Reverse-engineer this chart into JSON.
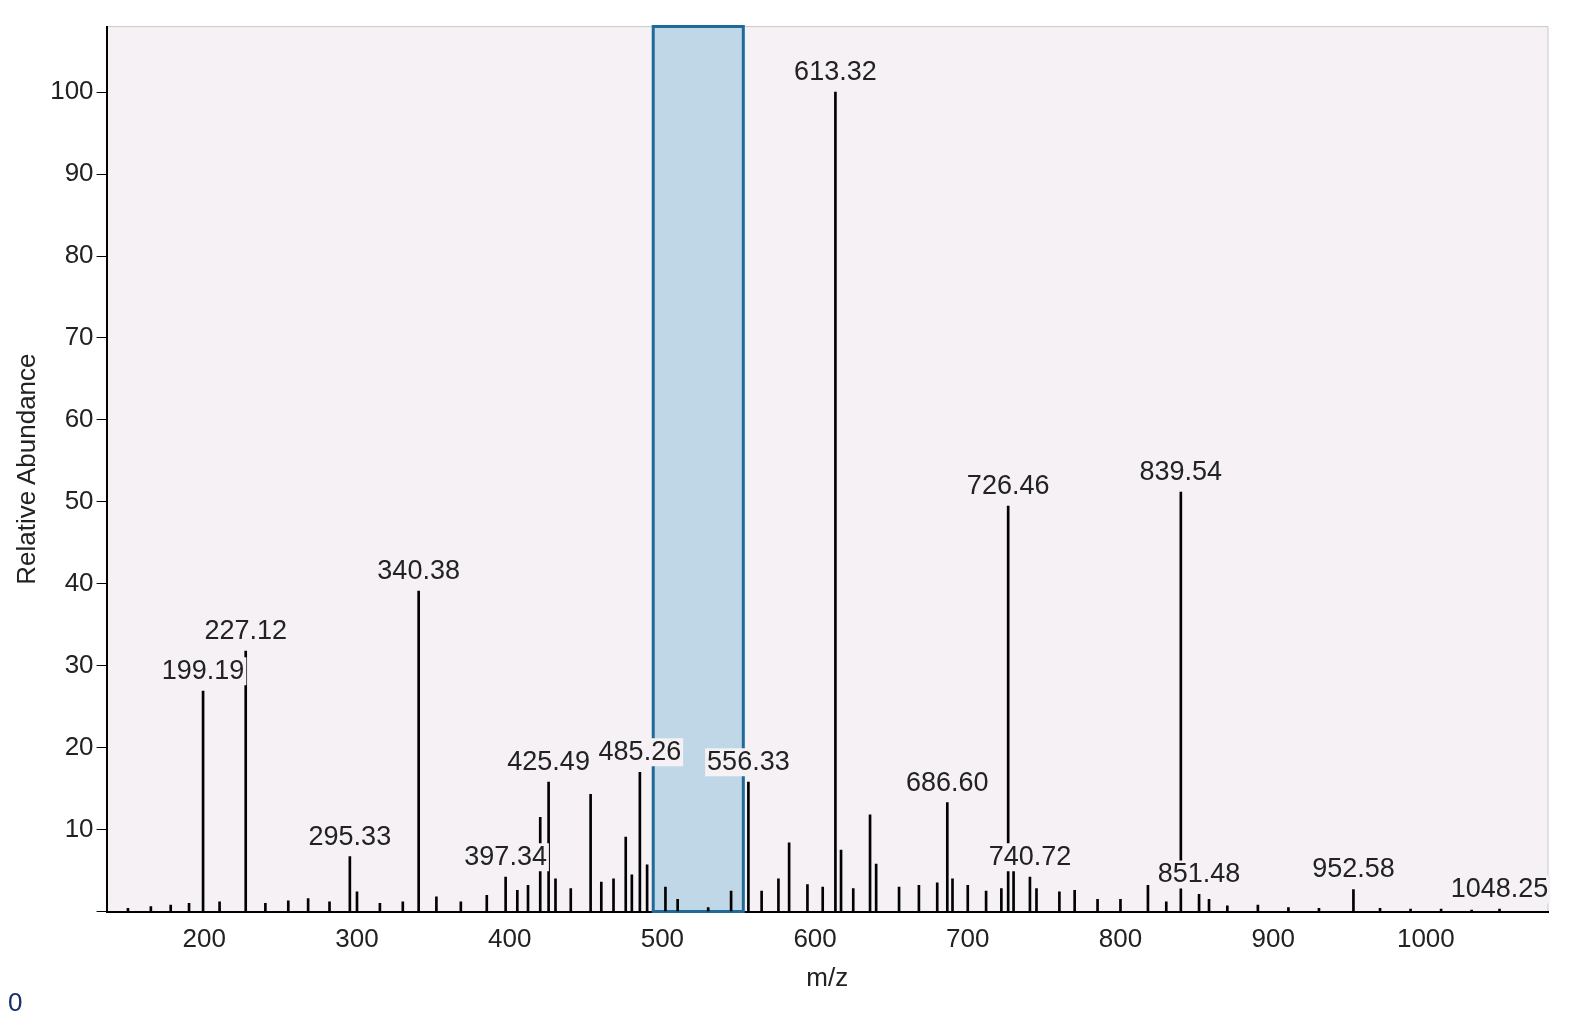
{
  "chart_data": {
    "type": "bar",
    "xlabel": "m/z",
    "ylabel": "Relative Abundance",
    "x": [
      150,
      165,
      178,
      190,
      199.19,
      210,
      227.12,
      240,
      255,
      268,
      282,
      295.33,
      300,
      315,
      330,
      340.38,
      352,
      368,
      385,
      397.34,
      405,
      412,
      420,
      425.49,
      430,
      440,
      453,
      460,
      468,
      476,
      480,
      485.26,
      490,
      502,
      510,
      530,
      545,
      556.33,
      565,
      576,
      583,
      595,
      605,
      613.32,
      617,
      625,
      636,
      640,
      655,
      668,
      680,
      686.6,
      690,
      700,
      712,
      722,
      726.46,
      730,
      740.72,
      745,
      760,
      770,
      785,
      800,
      818,
      830,
      839.54,
      851.48,
      858,
      870,
      890,
      910,
      930,
      952.58,
      970,
      990,
      1010,
      1030,
      1048.25
    ],
    "values": [
      0.4,
      0.6,
      0.8,
      1.0,
      26.9,
      1.2,
      31.8,
      1.0,
      1.3,
      1.6,
      1.2,
      6.7,
      2.4,
      1.0,
      1.2,
      39.1,
      1.8,
      1.2,
      2.0,
      4.2,
      2.6,
      3.2,
      11.5,
      15.8,
      4.0,
      2.8,
      14.3,
      3.6,
      4.0,
      9.1,
      4.5,
      17.0,
      5.7,
      3.0,
      1.5,
      0.5,
      2.5,
      15.8,
      2.5,
      4.0,
      8.4,
      3.3,
      3.0,
      100,
      7.5,
      2.8,
      11.8,
      5.8,
      3.0,
      3.2,
      3.5,
      13.3,
      4.0,
      3.2,
      2.5,
      2.8,
      49.5,
      5.0,
      4.2,
      2.8,
      2.4,
      2.6,
      1.5,
      1.5,
      3.2,
      1.2,
      51.2,
      2.1,
      1.5,
      0.7,
      0.8,
      0.5,
      0.4,
      2.7,
      0.4,
      0.3,
      0.3,
      0.2,
      0.3
    ],
    "color": "#000000",
    "xlim": [
      136,
      1080
    ],
    "xticks": [
      200,
      300,
      400,
      500,
      600,
      700,
      800,
      900,
      1000
    ],
    "ylim": [
      0,
      108
    ],
    "yticks": [
      {
        "value": 0,
        "label": null
      },
      10,
      20,
      30,
      40,
      50,
      60,
      70,
      80,
      90,
      100
    ],
    "bands": [
      {
        "axis": "x",
        "from": 494,
        "to": 553,
        "color": "#9cc6de"
      }
    ],
    "annotations": [
      "0",
      {
        "text": "199.19",
        "x": 199.19,
        "y": 26.9
      },
      {
        "text": "227.12",
        "x": 227.12,
        "y": 31.8
      },
      {
        "text": "295.33",
        "x": 295.33,
        "y": 6.7
      },
      {
        "text": "340.38",
        "x": 340.38,
        "y": 39.1
      },
      {
        "text": "397.34",
        "x": 397.34,
        "y": 4.2
      },
      {
        "text": "425.49",
        "x": 425.49,
        "y": 15.8
      },
      {
        "text": "485.26",
        "x": 485.26,
        "y": 17.0
      },
      {
        "text": "556.33",
        "x": 556.33,
        "y": 15.8
      },
      {
        "text": "613.32",
        "x": 613.32,
        "y": 100
      },
      {
        "text": "686.60",
        "x": 686.6,
        "y": 13.3
      },
      {
        "text": "726.46",
        "x": 726.46,
        "y": 49.5
      },
      {
        "text": "740.72",
        "x": 740.72,
        "y": 4.2
      },
      {
        "text": "839.54",
        "x": 839.54,
        "y": 51.2
      },
      {
        "text": "851.48",
        "x": 851.48,
        "y": 2.1
      },
      {
        "text": "952.58",
        "x": 952.58,
        "y": 2.7
      },
      {
        "text": "1048.25",
        "x": 1048.25,
        "y": 0.3
      }
    ],
    "grid": false,
    "legend": false
  }
}
